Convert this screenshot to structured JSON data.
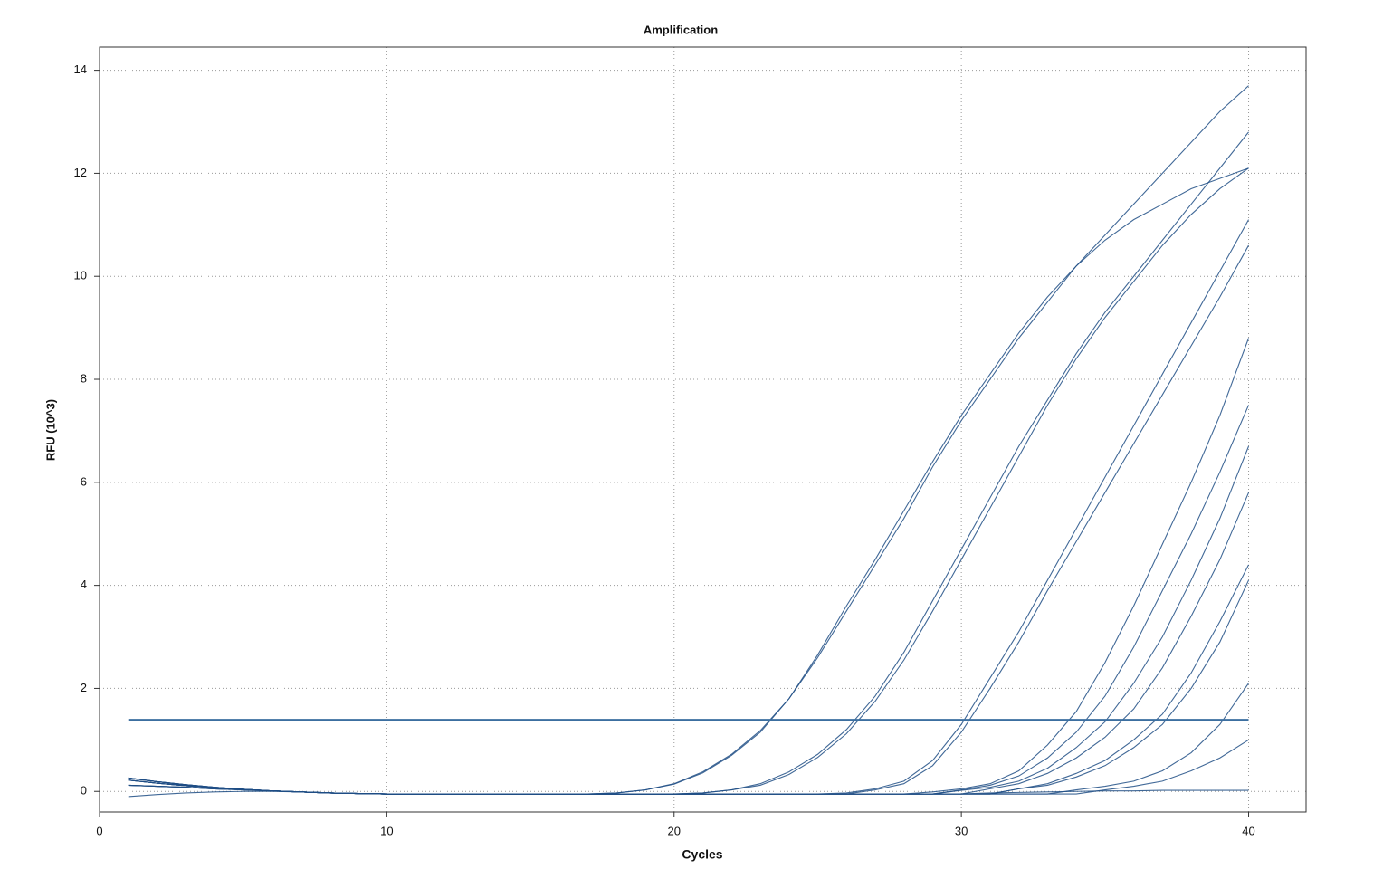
{
  "chart_data": {
    "type": "line",
    "title": "Amplification",
    "x_label": "Cycles",
    "y_label": "RFU (10^3)",
    "x": [
      1,
      2,
      3,
      4,
      5,
      6,
      7,
      8,
      9,
      10,
      11,
      12,
      13,
      14,
      15,
      16,
      17,
      18,
      19,
      20,
      21,
      22,
      23,
      24,
      25,
      26,
      27,
      28,
      29,
      30,
      31,
      32,
      33,
      34,
      35,
      36,
      37,
      38,
      39,
      40
    ],
    "xlim": [
      0,
      42
    ],
    "xticks": [
      0,
      10,
      20,
      30,
      40
    ],
    "ylim": [
      -0.4,
      14.45
    ],
    "yticks": [
      0,
      2,
      4,
      6,
      8,
      10,
      12,
      14
    ],
    "grid": true,
    "threshold": 1.39,
    "threshold_color": "#3c6fa0",
    "series": [
      {
        "color": "#1f4e85",
        "values": [
          0.22,
          0.16,
          0.11,
          0.07,
          0.04,
          0.01,
          -0.01,
          -0.03,
          -0.04,
          -0.05,
          -0.05,
          -0.05,
          -0.05,
          -0.05,
          -0.05,
          -0.05,
          -0.05,
          -0.03,
          0.03,
          0.15,
          0.38,
          0.72,
          1.18,
          1.8,
          2.6,
          3.5,
          4.4,
          5.3,
          6.3,
          7.2,
          8.0,
          8.8,
          9.5,
          10.2,
          10.8,
          11.4,
          12.0,
          12.6,
          13.2,
          13.7
        ]
      },
      {
        "color": "#1f4e85",
        "values": [
          0.26,
          0.19,
          0.13,
          0.08,
          0.04,
          0.01,
          -0.01,
          -0.03,
          -0.04,
          -0.05,
          -0.05,
          -0.05,
          -0.05,
          -0.05,
          -0.05,
          -0.05,
          -0.05,
          -0.03,
          0.03,
          0.14,
          0.36,
          0.7,
          1.15,
          1.8,
          2.65,
          3.6,
          4.5,
          5.45,
          6.4,
          7.3,
          8.1,
          8.9,
          9.6,
          10.2,
          10.7,
          11.1,
          11.4,
          11.7,
          11.9,
          12.1
        ]
      },
      {
        "color": "#1f4e85",
        "values": [
          0.12,
          0.1,
          0.08,
          0.05,
          0.03,
          0.01,
          -0.01,
          -0.03,
          -0.04,
          -0.05,
          -0.05,
          -0.05,
          -0.05,
          -0.05,
          -0.05,
          -0.05,
          -0.05,
          -0.05,
          -0.05,
          -0.05,
          -0.03,
          0.03,
          0.15,
          0.38,
          0.72,
          1.2,
          1.85,
          2.7,
          3.7,
          4.7,
          5.7,
          6.7,
          7.6,
          8.5,
          9.3,
          10.0,
          10.7,
          11.4,
          12.1,
          12.8
        ]
      },
      {
        "color": "#1f4e85",
        "values": [
          0.22,
          0.16,
          0.11,
          0.07,
          0.04,
          0.01,
          -0.01,
          -0.03,
          -0.04,
          -0.05,
          -0.05,
          -0.05,
          -0.05,
          -0.05,
          -0.05,
          -0.05,
          -0.05,
          -0.05,
          -0.05,
          -0.05,
          -0.03,
          0.03,
          0.12,
          0.33,
          0.66,
          1.12,
          1.75,
          2.55,
          3.5,
          4.5,
          5.5,
          6.5,
          7.5,
          8.4,
          9.2,
          9.9,
          10.6,
          11.2,
          11.7,
          12.1
        ]
      },
      {
        "color": "#1f4e85",
        "values": [
          0.26,
          0.19,
          0.13,
          0.08,
          0.04,
          0.01,
          -0.01,
          -0.03,
          -0.04,
          -0.05,
          -0.05,
          -0.05,
          -0.05,
          -0.05,
          -0.05,
          -0.05,
          -0.05,
          -0.05,
          -0.05,
          -0.05,
          -0.05,
          -0.05,
          -0.05,
          -0.05,
          -0.05,
          -0.03,
          0.05,
          0.2,
          0.6,
          1.3,
          2.2,
          3.1,
          4.1,
          5.1,
          6.1,
          7.1,
          8.1,
          9.1,
          10.1,
          11.1
        ]
      },
      {
        "color": "#1f4e85",
        "values": [
          0.12,
          0.1,
          0.08,
          0.05,
          0.03,
          0.01,
          -0.01,
          -0.03,
          -0.04,
          -0.05,
          -0.05,
          -0.05,
          -0.05,
          -0.05,
          -0.05,
          -0.05,
          -0.05,
          -0.05,
          -0.05,
          -0.05,
          -0.05,
          -0.05,
          -0.05,
          -0.05,
          -0.05,
          -0.05,
          0.03,
          0.15,
          0.5,
          1.15,
          2.0,
          2.9,
          3.9,
          4.85,
          5.8,
          6.75,
          7.7,
          8.65,
          9.6,
          10.6
        ]
      },
      {
        "color": "#1f4e85",
        "values": [
          0.22,
          0.16,
          0.11,
          0.07,
          0.04,
          0.01,
          -0.01,
          -0.03,
          -0.04,
          -0.05,
          -0.05,
          -0.05,
          -0.05,
          -0.05,
          -0.05,
          -0.05,
          -0.05,
          -0.05,
          -0.05,
          -0.05,
          -0.05,
          -0.05,
          -0.05,
          -0.05,
          -0.05,
          -0.05,
          -0.05,
          -0.05,
          -0.01,
          0.05,
          0.15,
          0.4,
          0.9,
          1.55,
          2.5,
          3.6,
          4.8,
          6.0,
          7.3,
          8.8
        ]
      },
      {
        "color": "#1f4e85",
        "values": [
          0.26,
          0.19,
          0.13,
          0.08,
          0.04,
          0.01,
          -0.01,
          -0.03,
          -0.04,
          -0.05,
          -0.05,
          -0.05,
          -0.05,
          -0.05,
          -0.05,
          -0.05,
          -0.05,
          -0.05,
          -0.05,
          -0.05,
          -0.05,
          -0.05,
          -0.05,
          -0.05,
          -0.05,
          -0.05,
          -0.05,
          -0.05,
          -0.05,
          0.03,
          0.12,
          0.3,
          0.65,
          1.15,
          1.85,
          2.8,
          3.9,
          5.0,
          6.2,
          7.5
        ]
      },
      {
        "color": "#1f4e85",
        "values": [
          0.12,
          0.1,
          0.08,
          0.05,
          0.03,
          0.01,
          -0.01,
          -0.03,
          -0.04,
          -0.05,
          -0.05,
          -0.05,
          -0.05,
          -0.05,
          -0.05,
          -0.05,
          -0.05,
          -0.05,
          -0.05,
          -0.05,
          -0.05,
          -0.05,
          -0.05,
          -0.05,
          -0.05,
          -0.05,
          -0.05,
          -0.05,
          -0.05,
          0.02,
          0.08,
          0.2,
          0.45,
          0.85,
          1.35,
          2.1,
          3.0,
          4.1,
          5.3,
          6.7
        ]
      },
      {
        "color": "#1f4e85",
        "values": [
          0.22,
          0.16,
          0.11,
          0.07,
          0.04,
          0.01,
          -0.01,
          -0.03,
          -0.04,
          -0.05,
          -0.05,
          -0.05,
          -0.05,
          -0.05,
          -0.05,
          -0.05,
          -0.05,
          -0.05,
          -0.05,
          -0.05,
          -0.05,
          -0.05,
          -0.05,
          -0.05,
          -0.05,
          -0.05,
          -0.05,
          -0.05,
          -0.05,
          -0.05,
          0.05,
          0.15,
          0.35,
          0.65,
          1.05,
          1.6,
          2.4,
          3.4,
          4.5,
          5.8
        ]
      },
      {
        "color": "#1f4e85",
        "values": [
          0.26,
          0.19,
          0.13,
          0.08,
          0.04,
          0.01,
          -0.01,
          -0.03,
          -0.04,
          -0.05,
          -0.05,
          -0.05,
          -0.05,
          -0.05,
          -0.05,
          -0.05,
          -0.05,
          -0.05,
          -0.05,
          -0.05,
          -0.05,
          -0.05,
          -0.05,
          -0.05,
          -0.05,
          -0.05,
          -0.05,
          -0.05,
          -0.05,
          -0.05,
          -0.05,
          0.05,
          0.15,
          0.35,
          0.6,
          1.0,
          1.5,
          2.3,
          3.3,
          4.4
        ]
      },
      {
        "color": "#1f4e85",
        "values": [
          0.12,
          0.1,
          0.08,
          0.05,
          0.03,
          0.01,
          -0.01,
          -0.03,
          -0.04,
          -0.05,
          -0.05,
          -0.05,
          -0.05,
          -0.05,
          -0.05,
          -0.05,
          -0.05,
          -0.05,
          -0.05,
          -0.05,
          -0.05,
          -0.05,
          -0.05,
          -0.05,
          -0.05,
          -0.05,
          -0.05,
          -0.05,
          -0.05,
          -0.05,
          -0.05,
          0.05,
          0.12,
          0.28,
          0.5,
          0.85,
          1.3,
          2.0,
          2.9,
          4.1
        ]
      },
      {
        "color": "#1f4e85",
        "values": [
          0.22,
          0.16,
          0.11,
          0.07,
          0.04,
          0.01,
          -0.01,
          -0.03,
          -0.04,
          -0.05,
          -0.05,
          -0.05,
          -0.05,
          -0.05,
          -0.05,
          -0.05,
          -0.05,
          -0.05,
          -0.05,
          -0.05,
          -0.05,
          -0.05,
          -0.05,
          -0.05,
          -0.05,
          -0.05,
          -0.05,
          -0.05,
          -0.05,
          -0.05,
          -0.05,
          -0.05,
          -0.05,
          0.03,
          0.1,
          0.2,
          0.4,
          0.75,
          1.3,
          2.1
        ]
      },
      {
        "color": "#1f4e85",
        "values": [
          0.26,
          0.19,
          0.13,
          0.08,
          0.04,
          0.01,
          -0.01,
          -0.03,
          -0.04,
          -0.05,
          -0.05,
          -0.05,
          -0.05,
          -0.05,
          -0.05,
          -0.05,
          -0.05,
          -0.05,
          -0.05,
          -0.05,
          -0.05,
          -0.05,
          -0.05,
          -0.05,
          -0.05,
          -0.05,
          -0.05,
          -0.05,
          -0.05,
          -0.05,
          -0.05,
          -0.05,
          -0.05,
          -0.05,
          0.03,
          0.1,
          0.2,
          0.4,
          0.65,
          1.0
        ]
      },
      {
        "color": "#1f4e85",
        "values": [
          -0.1,
          -0.06,
          -0.03,
          -0.01,
          0.0,
          0.0,
          -0.01,
          -0.03,
          -0.04,
          -0.05,
          -0.05,
          -0.05,
          -0.05,
          -0.05,
          -0.05,
          -0.05,
          -0.05,
          -0.05,
          -0.05,
          -0.05,
          -0.05,
          -0.05,
          -0.05,
          -0.05,
          -0.05,
          -0.05,
          -0.05,
          -0.05,
          -0.05,
          -0.05,
          -0.03,
          -0.02,
          -0.01,
          0,
          0.01,
          0.01,
          0.02,
          0.02,
          0.02,
          0.02
        ]
      }
    ]
  }
}
